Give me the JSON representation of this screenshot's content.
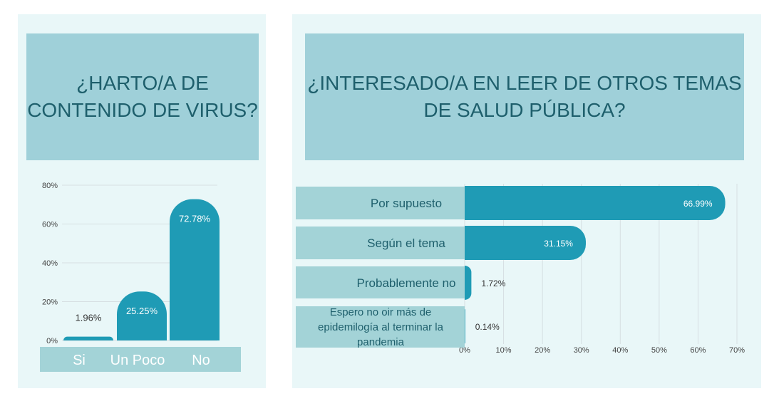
{
  "colors": {
    "panel_bg": "#e9f7f8",
    "title_bg": "#9fd0d9",
    "title_text": "#1e5f6c",
    "bar": "#1f9bb5",
    "category_bg": "#a3d3d7",
    "gridline": "#d6dfe2"
  },
  "left": {
    "title": "¿HARTO/A DE\nCONTENIDO DE VIRUS?"
  },
  "right": {
    "title": "¿INTERESADO/A EN LEER DE OTROS TEMAS\nDE SALUD PÚBLICA?"
  },
  "chart_data": [
    {
      "type": "bar",
      "orientation": "vertical",
      "categories": [
        "Si",
        "Un Poco",
        "No"
      ],
      "values": [
        1.96,
        25.25,
        72.78
      ],
      "data_labels": [
        "1.96%",
        "25.25%",
        "72.78%"
      ],
      "yticks": [
        "0%",
        "20%",
        "40%",
        "60%",
        "80%"
      ],
      "ylim": [
        0,
        80
      ],
      "grid": true
    },
    {
      "type": "bar",
      "orientation": "horizontal",
      "categories": [
        "Por supuesto",
        "Según el tema",
        "Probablemente no",
        "Espero no oir más de epidemilogía al terminar la pandemia"
      ],
      "category_lines": [
        [
          "Por supuesto"
        ],
        [
          "Según el tema"
        ],
        [
          "Probablemente no"
        ],
        [
          "Espero no oir más de",
          "epidemilogía al terminar la",
          "pandemia"
        ]
      ],
      "values": [
        66.99,
        31.15,
        1.72,
        0.14
      ],
      "data_labels": [
        "66.99%",
        "31.15%",
        "1.72%",
        "0.14%"
      ],
      "xticks": [
        "0%",
        "10%",
        "20%",
        "30%",
        "40%",
        "50%",
        "60%",
        "70%"
      ],
      "xlim": [
        0,
        70
      ],
      "grid": true
    }
  ]
}
